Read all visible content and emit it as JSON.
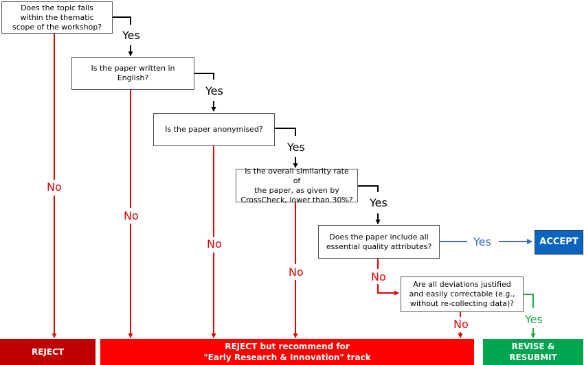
{
  "questions": {
    "q1": "Does the topic falls\nwithin the thematic\nscope of the workshop?",
    "q2": "Is the paper written in\nEnglish?",
    "q3": "Is the paper anonymised?",
    "q4": "Is the overall similarity rate of\nthe paper, as given by\nCrossCheck, lower than 30%?",
    "q5": "Does the paper include all\nessential quality attributes?",
    "q6": "Are all deviations justified\nand easily correctable (e.g.,\nwithout re-collecting data)?"
  },
  "labels": {
    "yes": "Yes",
    "no": "No"
  },
  "outcomes": {
    "reject": "REJECT",
    "reject_recommend": "REJECT but recommend for\n\"Early Research & Innovation\" track",
    "accept": "ACCEPT",
    "revise": "REVISE &\nRESUBMIT"
  },
  "colors": {
    "black": "#000000",
    "red": "#e00000",
    "blue": "#3a6fbf",
    "green": "#1aa84a",
    "reject_dark": "#c00000",
    "reject_bright": "#ff0000",
    "accept": "#0a64c0",
    "revise": "#00a550"
  }
}
